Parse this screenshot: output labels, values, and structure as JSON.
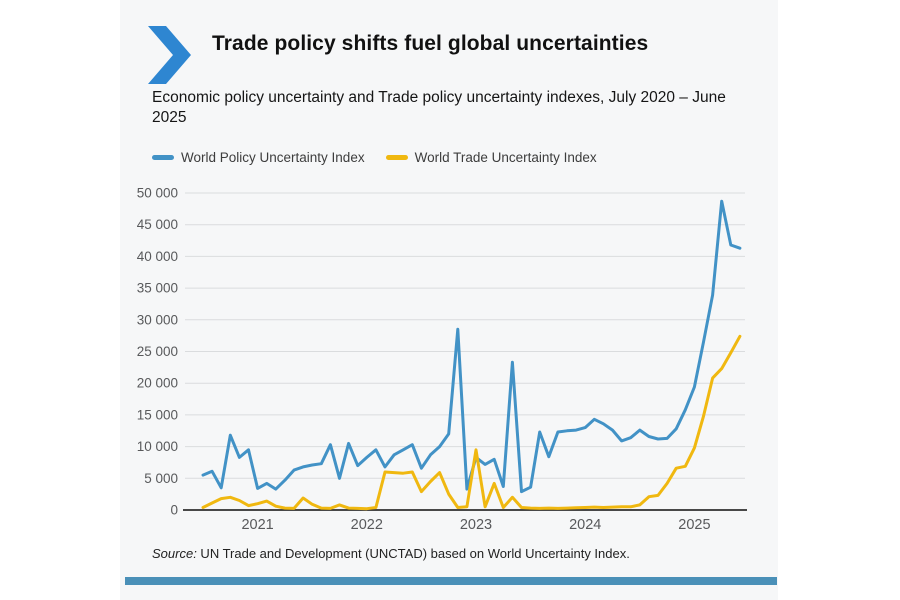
{
  "page": {
    "background": "#ffffff",
    "card_background": "#f6f7f8"
  },
  "header": {
    "title": "Trade policy shifts fuel global uncertainties",
    "subtitle": "Economic policy uncertainty and Trade policy uncertainty indexes, July 2020 – June 2025",
    "chevron_color": "#2e86d1"
  },
  "legend": [
    {
      "label": "World Policy Uncertainty Index",
      "color": "#4292c6"
    },
    {
      "label": "World Trade Uncertainty Index",
      "color": "#f0b810"
    }
  ],
  "source": {
    "prefix": "Source:",
    "text": " UN Trade and Development (UNCTAD) based on World Uncertainty Index."
  },
  "footer_bar_color": "#4a90b8",
  "chart_data": {
    "type": "line",
    "title": "Economic policy uncertainty and Trade policy uncertainty indexes, July 2020 – June 2025",
    "frequency": "monthly",
    "x_range": [
      "2020-07",
      "2025-06"
    ],
    "x_tick_labels": [
      "2021",
      "2022",
      "2023",
      "2024",
      "2025"
    ],
    "x_tick_month_indices": [
      6,
      18,
      30,
      42,
      54
    ],
    "ylim": [
      0,
      50000
    ],
    "y_tick_step": 5000,
    "y_tick_labels": [
      "0",
      "5 000",
      "10 000",
      "15 000",
      "20 000",
      "25 000",
      "30 000",
      "35 000",
      "40 000",
      "45 000",
      "50 000"
    ],
    "grid": true,
    "grid_color": "#dadcde",
    "axis_color": "#2f2f2f",
    "tick_label_color": "#58595b",
    "legend_position": "top",
    "series": [
      {
        "name": "World Policy Uncertainty Index",
        "color": "#4292c6",
        "values": [
          5500,
          6100,
          3500,
          11800,
          8300,
          9500,
          3400,
          4200,
          3300,
          4700,
          6300,
          6800,
          7100,
          7300,
          10300,
          5000,
          10500,
          7000,
          8300,
          9500,
          6800,
          8700,
          9500,
          10300,
          6600,
          8700,
          10000,
          12000,
          28500,
          3300,
          8300,
          7200,
          8000,
          3700,
          23300,
          2900,
          3600,
          12300,
          8400,
          12300,
          12500,
          12600,
          13000,
          14300,
          13600,
          12600,
          10900,
          11400,
          12600,
          11600,
          11200,
          11300,
          12800,
          15800,
          19400,
          26500,
          33900,
          48700,
          41800,
          41300
        ]
      },
      {
        "name": "World Trade Uncertainty Index",
        "color": "#f0b810",
        "values": [
          400,
          1100,
          1800,
          2000,
          1500,
          700,
          1000,
          1400,
          600,
          300,
          250,
          1900,
          900,
          300,
          250,
          800,
          300,
          250,
          200,
          400,
          6000,
          5900,
          5800,
          6000,
          2900,
          4500,
          5900,
          2500,
          400,
          500,
          9500,
          500,
          4200,
          400,
          2000,
          400,
          300,
          250,
          300,
          250,
          300,
          350,
          400,
          450,
          400,
          450,
          500,
          500,
          800,
          2100,
          2300,
          4200,
          6600,
          6900,
          9800,
          14800,
          20800,
          22300,
          24800,
          27400
        ]
      }
    ]
  }
}
